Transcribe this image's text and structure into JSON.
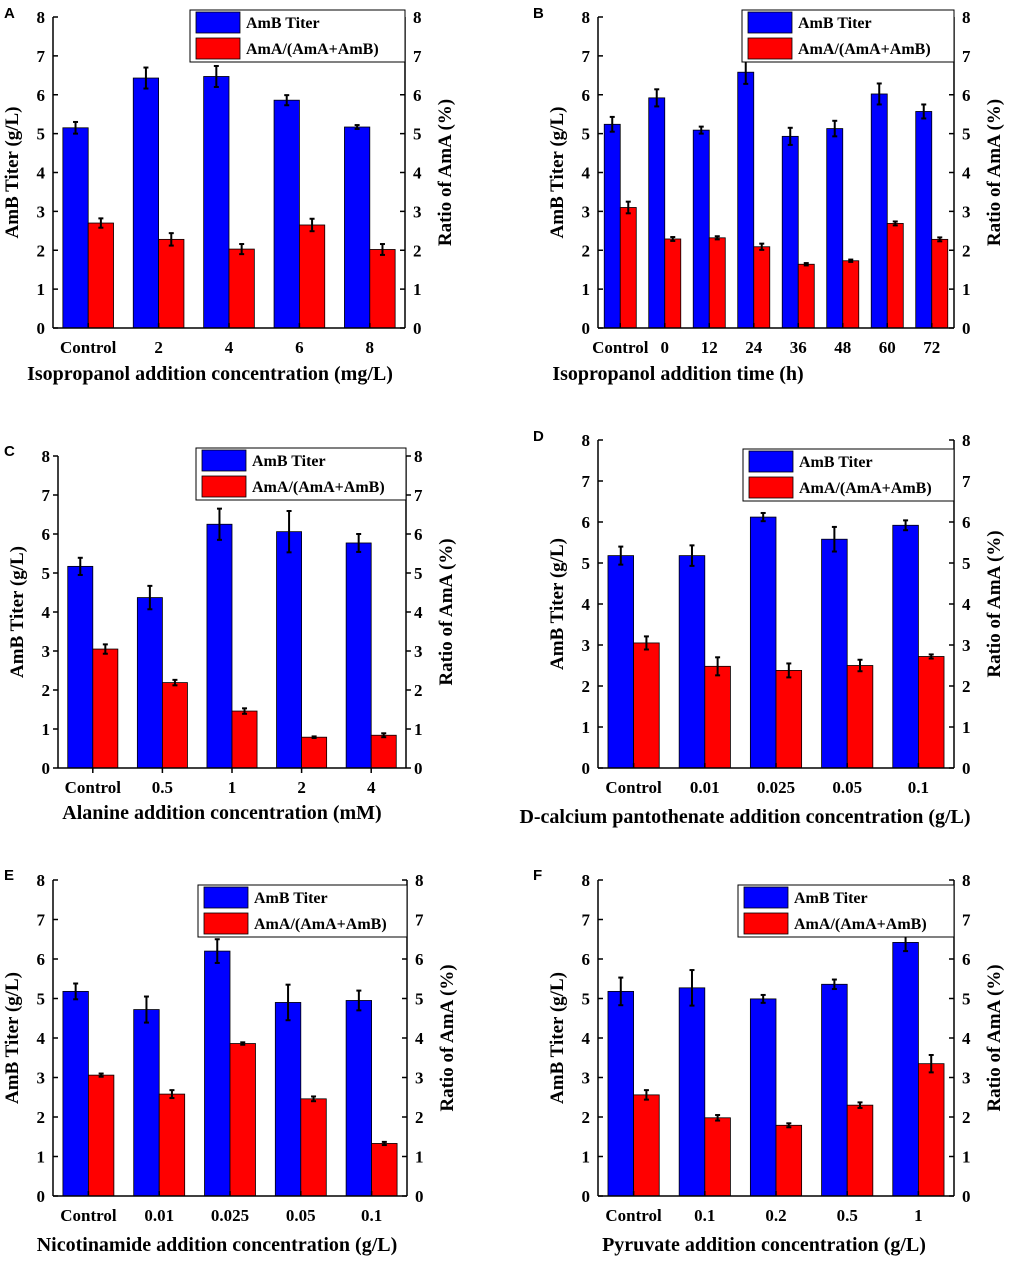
{
  "figure": {
    "colors": {
      "titer": "#0000ff",
      "ratio": "#ff0000",
      "axis": "#000000",
      "error": "#000000"
    },
    "chart_data": [
      {
        "panel": "A",
        "type": "bar",
        "xlabel": "Isopropanol addition concentration (mg/L)",
        "ylabel_left": "AmB Titer (g/L)",
        "ylabel_right": "Ratio of AmA (%)",
        "ylim": [
          0,
          8
        ],
        "yticks": [
          0,
          1,
          2,
          3,
          4,
          5,
          6,
          7,
          8
        ],
        "legend": [
          "AmB Titer",
          "AmA/(AmA+AmB)"
        ],
        "legend_position": "top-center",
        "categories": [
          "Control",
          "2",
          "4",
          "6",
          "8"
        ],
        "series": [
          {
            "name": "AmB Titer",
            "axis": "left",
            "values": [
              5.15,
              6.43,
              6.47,
              5.86,
              5.17
            ],
            "errors": [
              0.15,
              0.27,
              0.27,
              0.13,
              0.05
            ]
          },
          {
            "name": "AmA/(AmA+AmB)",
            "axis": "right",
            "values": [
              2.7,
              2.28,
              2.03,
              2.65,
              2.02
            ],
            "errors": [
              0.12,
              0.16,
              0.13,
              0.16,
              0.14
            ]
          }
        ]
      },
      {
        "panel": "B",
        "type": "bar",
        "xlabel": "Isopropanol addition time (h)",
        "ylabel_left": "AmB Titer (g/L)",
        "ylabel_right": "Ratio of AmA (%)",
        "ylim": [
          0,
          8
        ],
        "yticks": [
          0,
          1,
          2,
          3,
          4,
          5,
          6,
          7,
          8
        ],
        "legend": [
          "AmB Titer",
          "AmA/(AmA+AmB)"
        ],
        "legend_position": "top-right",
        "categories": [
          "Control",
          "0",
          "12",
          "24",
          "36",
          "48",
          "60",
          "72"
        ],
        "series": [
          {
            "name": "AmB Titer",
            "axis": "left",
            "values": [
              5.24,
              5.92,
              5.09,
              6.58,
              4.93,
              5.13,
              6.02,
              5.57
            ],
            "errors": [
              0.19,
              0.22,
              0.09,
              0.3,
              0.22,
              0.2,
              0.27,
              0.18
            ]
          },
          {
            "name": "AmA/(AmA+AmB)",
            "axis": "right",
            "values": [
              3.1,
              2.29,
              2.32,
              2.09,
              1.64,
              1.73,
              2.69,
              2.28
            ],
            "errors": [
              0.15,
              0.05,
              0.04,
              0.08,
              0.03,
              0.03,
              0.05,
              0.05
            ]
          }
        ]
      },
      {
        "panel": "C",
        "type": "bar",
        "xlabel": "Alanine addition concentration (mM)",
        "ylabel_left": "AmB Titer (g/L)",
        "ylabel_right": "Ratio of AmA (%)",
        "ylim": [
          0,
          8
        ],
        "yticks": [
          0,
          1,
          2,
          3,
          4,
          5,
          6,
          7,
          8
        ],
        "legend": [
          "AmB Titer",
          "AmA/(AmA+AmB)"
        ],
        "legend_position": "top-right",
        "categories": [
          "Control",
          "0.5",
          "1",
          "2",
          "4"
        ],
        "series": [
          {
            "name": "AmB Titer",
            "axis": "left",
            "values": [
              5.17,
              4.37,
              6.25,
              6.06,
              5.77
            ],
            "errors": [
              0.22,
              0.3,
              0.4,
              0.53,
              0.23
            ]
          },
          {
            "name": "AmA/(AmA+AmB)",
            "axis": "right",
            "values": [
              3.05,
              2.19,
              1.46,
              0.79,
              0.84
            ],
            "errors": [
              0.12,
              0.07,
              0.07,
              0.02,
              0.05
            ]
          }
        ]
      },
      {
        "panel": "D",
        "type": "bar",
        "xlabel": "D-calcium pantothenate addition concentration (g/L)",
        "ylabel_left": "AmB Titer (g/L)",
        "ylabel_right": "Ratio of AmA (%)",
        "ylim": [
          0,
          8
        ],
        "yticks": [
          0,
          1,
          2,
          3,
          4,
          5,
          6,
          7,
          8
        ],
        "legend": [
          "AmB Titer",
          "AmA/(AmA+AmB)"
        ],
        "legend_position": "top-right",
        "categories": [
          "Control",
          "0.01",
          "0.025",
          "0.05",
          "0.1"
        ],
        "series": [
          {
            "name": "AmB Titer",
            "axis": "left",
            "values": [
              5.18,
              5.18,
              6.12,
              5.58,
              5.92
            ],
            "errors": [
              0.22,
              0.25,
              0.1,
              0.3,
              0.12
            ]
          },
          {
            "name": "AmA/(AmA+AmB)",
            "axis": "right",
            "values": [
              3.05,
              2.48,
              2.38,
              2.5,
              2.72
            ],
            "errors": [
              0.16,
              0.22,
              0.17,
              0.14,
              0.05
            ]
          }
        ]
      },
      {
        "panel": "E",
        "type": "bar",
        "xlabel": "Nicotinamide addition concentration (g/L)",
        "ylabel_left": "AmB Titer (g/L)",
        "ylabel_right": "Ratio of AmA (%)",
        "ylim": [
          0,
          8
        ],
        "yticks": [
          0,
          1,
          2,
          3,
          4,
          5,
          6,
          7,
          8
        ],
        "legend": [
          "AmB Titer",
          "AmA/(AmA+AmB)"
        ],
        "legend_position": "top-right",
        "categories": [
          "Control",
          "0.01",
          "0.025",
          "0.05",
          "0.1"
        ],
        "series": [
          {
            "name": "AmB Titer",
            "axis": "left",
            "values": [
              5.18,
              4.72,
              6.2,
              4.9,
              4.95
            ],
            "errors": [
              0.2,
              0.33,
              0.3,
              0.45,
              0.25
            ]
          },
          {
            "name": "AmA/(AmA+AmB)",
            "axis": "right",
            "values": [
              3.06,
              2.58,
              3.86,
              2.46,
              1.33
            ],
            "errors": [
              0.04,
              0.1,
              0.03,
              0.06,
              0.04
            ]
          }
        ]
      },
      {
        "panel": "F",
        "type": "bar",
        "xlabel": "Pyruvate addition concentration (g/L)",
        "ylabel_left": "AmB Titer (g/L)",
        "ylabel_right": "Ratio of AmA (%)",
        "ylim": [
          0,
          8
        ],
        "yticks": [
          0,
          1,
          2,
          3,
          4,
          5,
          6,
          7,
          8
        ],
        "legend": [
          "AmB Titer",
          "AmA/(AmA+AmB)"
        ],
        "legend_position": "top-right",
        "categories": [
          "Control",
          "0.1",
          "0.2",
          "0.5",
          "1"
        ],
        "series": [
          {
            "name": "AmB Titer",
            "axis": "left",
            "values": [
              5.18,
              5.27,
              4.99,
              5.36,
              6.42
            ],
            "errors": [
              0.35,
              0.45,
              0.1,
              0.12,
              0.22
            ]
          },
          {
            "name": "AmA/(AmA+AmB)",
            "axis": "right",
            "values": [
              2.56,
              1.98,
              1.79,
              2.3,
              3.35
            ],
            "errors": [
              0.12,
              0.07,
              0.05,
              0.07,
              0.22
            ]
          }
        ]
      }
    ]
  }
}
